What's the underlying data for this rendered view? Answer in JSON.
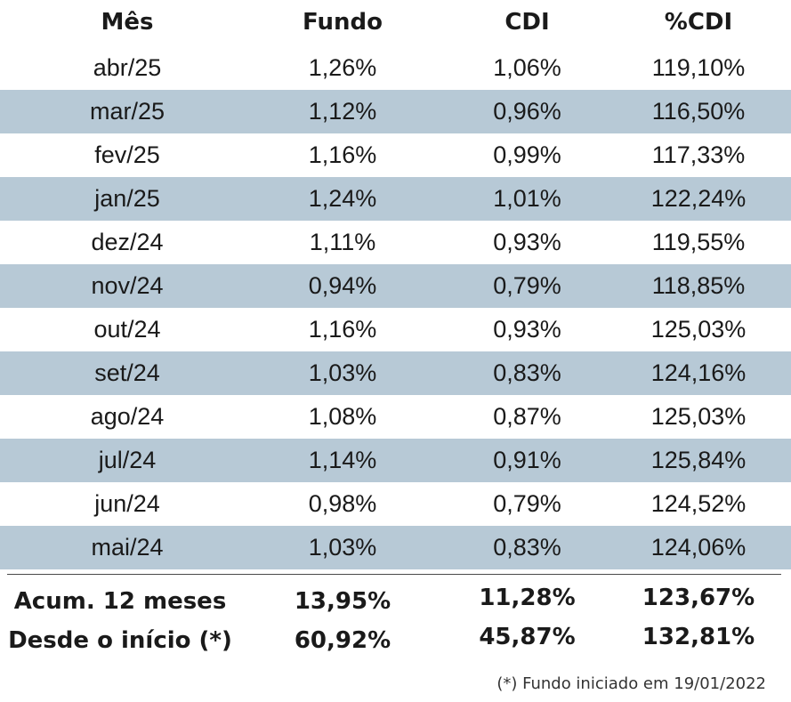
{
  "table": {
    "headers": [
      "Mês",
      "Fundo",
      "CDI",
      "%CDI"
    ],
    "rows": [
      [
        "abr/25",
        "1,26%",
        "1,06%",
        "119,10%"
      ],
      [
        "mar/25",
        "1,12%",
        "0,96%",
        "116,50%"
      ],
      [
        "fev/25",
        "1,16%",
        "0,99%",
        "117,33%"
      ],
      [
        "jan/25",
        "1,24%",
        "1,01%",
        "122,24%"
      ],
      [
        "dez/24",
        "1,11%",
        "0,93%",
        "119,55%"
      ],
      [
        "nov/24",
        "0,94%",
        "0,79%",
        "118,85%"
      ],
      [
        "out/24",
        "1,16%",
        "0,93%",
        "125,03%"
      ],
      [
        "set/24",
        "1,03%",
        "0,83%",
        "124,16%"
      ],
      [
        "ago/24",
        "1,08%",
        "0,87%",
        "125,03%"
      ],
      [
        "jul/24",
        "1,14%",
        "0,91%",
        "125,84%"
      ],
      [
        "jun/24",
        "0,98%",
        "0,79%",
        "124,52%"
      ],
      [
        "mai/24",
        "1,03%",
        "0,83%",
        "124,06%"
      ]
    ],
    "summary": [
      [
        "Acum. 12 meses",
        "13,95%",
        "11,28%",
        "123,67%"
      ],
      [
        "Desde o início (*)",
        "60,92%",
        "45,87%",
        "132,81%"
      ]
    ],
    "footnote": "(*) Fundo iniciado em 19/01/2022",
    "stripe_color": "#b7c9d6"
  }
}
